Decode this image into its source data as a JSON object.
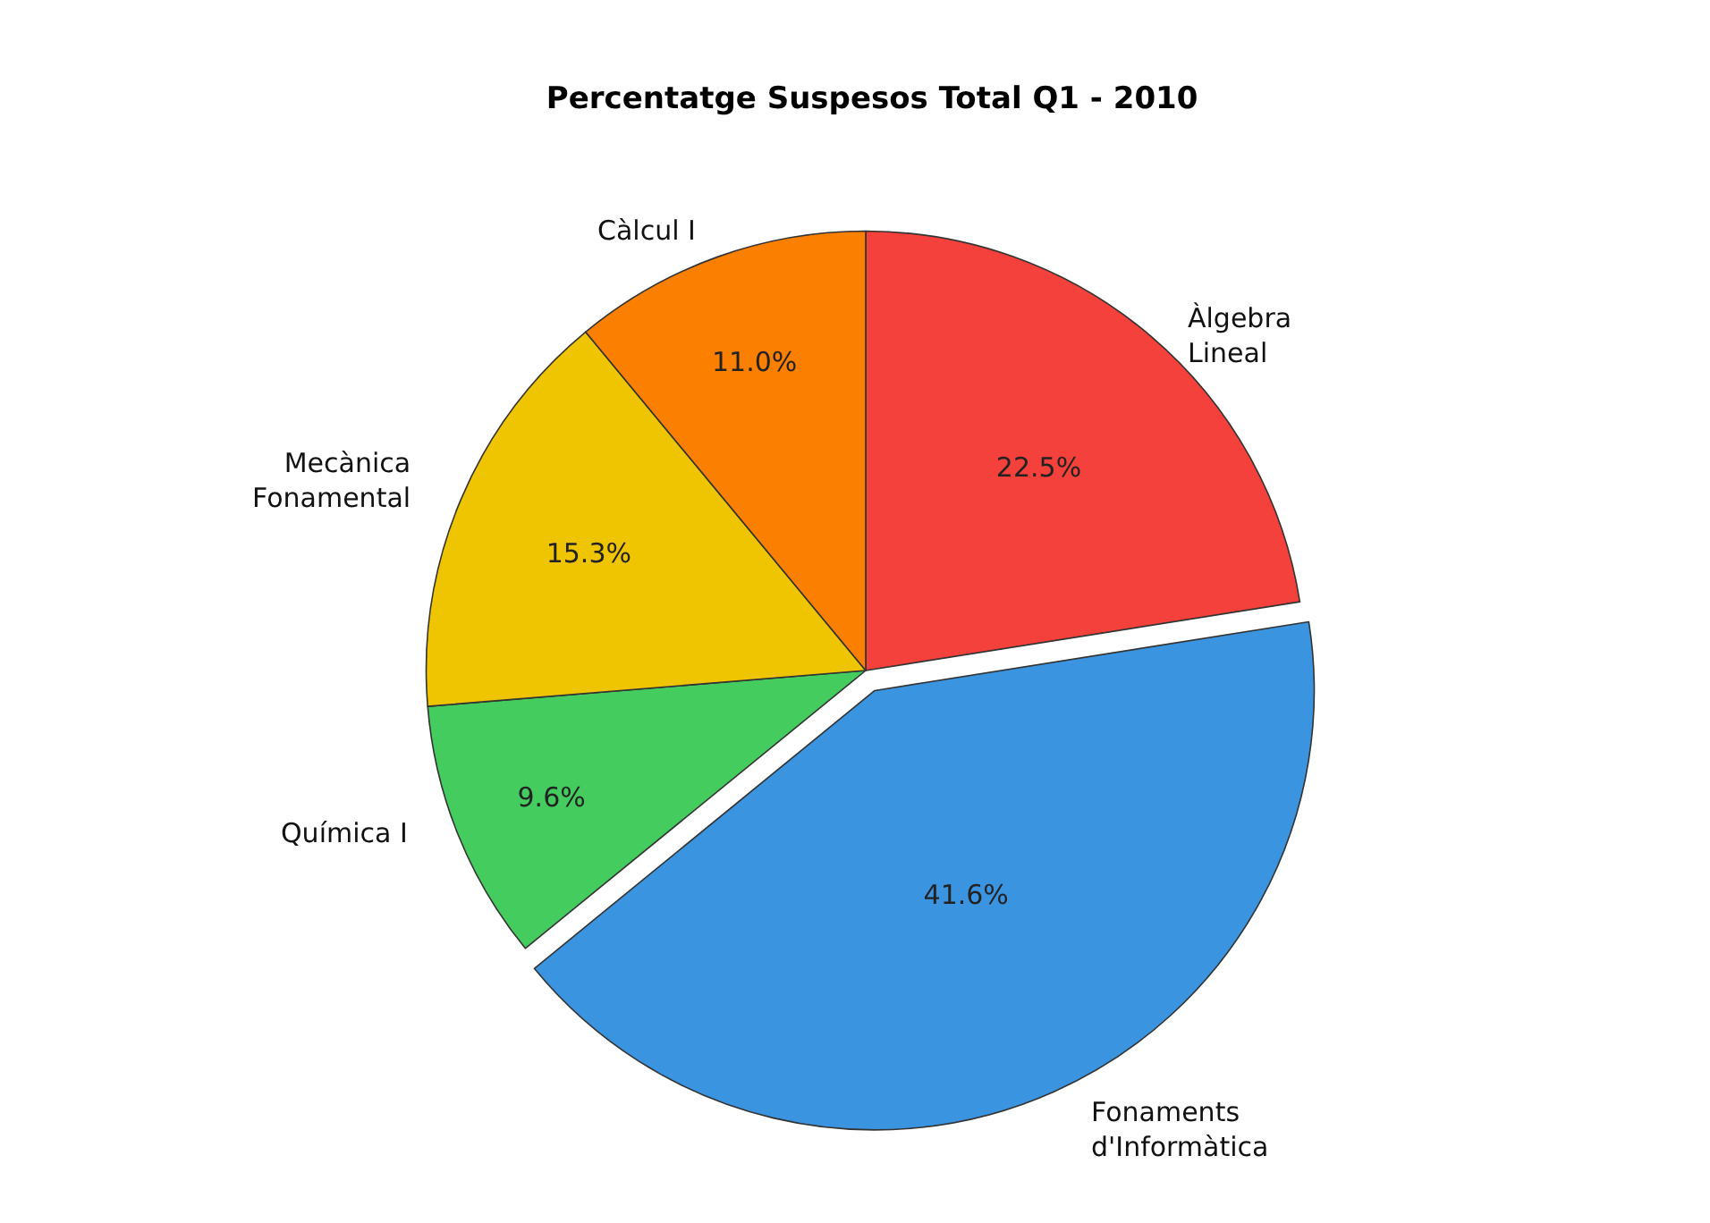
{
  "chart_data": {
    "type": "pie",
    "title": "Percentatge Suspesos Total Q1 - 2010",
    "categories": [
      "Àlgebra\nLineal",
      "Fonaments\nd'Informàtica",
      "Química I",
      "Mecànica\nFonamental",
      "Càlcul I"
    ],
    "values": [
      22.5,
      41.6,
      9.6,
      15.3,
      11.0
    ],
    "colors": [
      "#f5413b",
      "#3b94e0",
      "#44cc5f",
      "#efc400",
      "#fb7f00"
    ],
    "value_labels": [
      "22.5%",
      "41.6%",
      "9.6%",
      "15.3%",
      "11.0%"
    ],
    "legend": false
  }
}
